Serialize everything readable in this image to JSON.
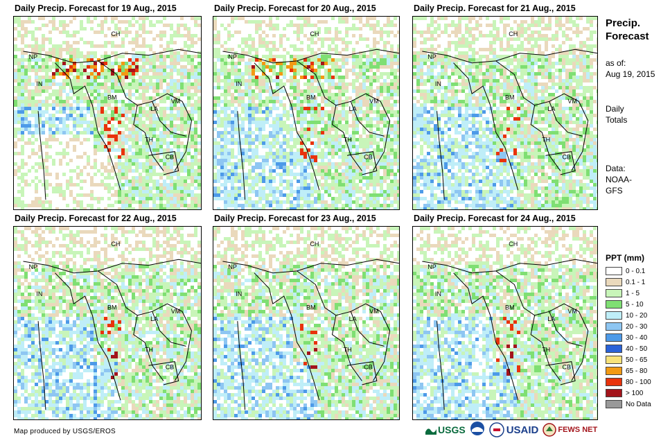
{
  "panels": [
    {
      "title": "Daily Precip. Forecast for 19 Aug., 2015"
    },
    {
      "title": "Daily Precip. Forecast for 20 Aug., 2015"
    },
    {
      "title": "Daily Precip. Forecast for 21 Aug., 2015"
    },
    {
      "title": "Daily Precip. Forecast for 22 Aug., 2015"
    },
    {
      "title": "Daily Precip. Forecast for 23 Aug., 2015"
    },
    {
      "title": "Daily Precip. Forecast for 24 Aug., 2015"
    }
  ],
  "country_labels": [
    "CH",
    "NP",
    "IN",
    "BM",
    "LA",
    "VM",
    "TH",
    "CB"
  ],
  "side": {
    "title_line1": "Precip.",
    "title_line2": "Forecast",
    "asof_line1": "as of:",
    "asof_line2": "Aug 19, 2015",
    "daily_line1": "Daily",
    "daily_line2": "Totals",
    "data_line1": "Data:",
    "data_line2": "NOAA-",
    "data_line3": "GFS"
  },
  "legend": {
    "title": "PPT (mm)",
    "items": [
      {
        "label": "0 - 0.1",
        "color": "#ffffff"
      },
      {
        "label": "0.1 - 1",
        "color": "#ead9bc"
      },
      {
        "label": "1 - 5",
        "color": "#c8f5b9"
      },
      {
        "label": "5 - 10",
        "color": "#7fdf73"
      },
      {
        "label": "10 - 20",
        "color": "#bfeef8"
      },
      {
        "label": "20 - 30",
        "color": "#8ec6f2"
      },
      {
        "label": "30 - 40",
        "color": "#4d9ae8"
      },
      {
        "label": "40 - 50",
        "color": "#2a62d8"
      },
      {
        "label": "50 - 65",
        "color": "#f7e27a"
      },
      {
        "label": "65 - 80",
        "color": "#f29a14"
      },
      {
        "label": "80 - 100",
        "color": "#e8330c"
      },
      {
        "label": "> 100",
        "color": "#a3141b"
      },
      {
        "label": "No Data",
        "color": "#999999"
      }
    ]
  },
  "credit": "Map produced by USGS/EROS",
  "logos": {
    "usgs": "USGS",
    "usaid": "USAID",
    "fewsnet": "FEWS NET"
  }
}
